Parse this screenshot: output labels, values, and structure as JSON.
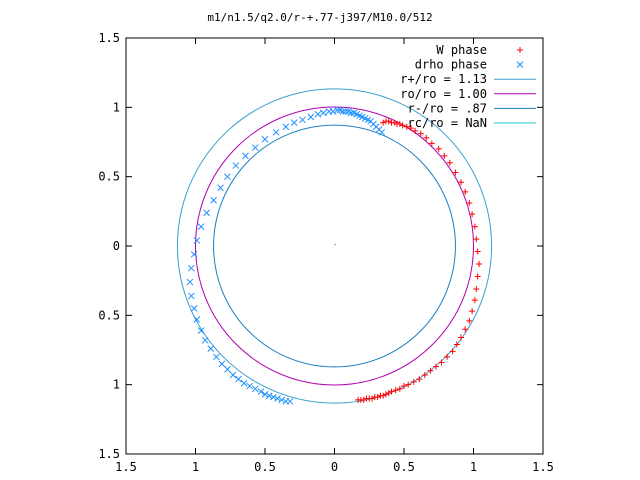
{
  "chart_data": {
    "type": "scatter",
    "title": "m1/n1.5/q2.0/r-+.77-j397/M10.0/512",
    "xlabel": "",
    "ylabel": "",
    "xlim": [
      -1.5,
      1.5
    ],
    "ylim": [
      -1.5,
      1.5
    ],
    "x_ticks": [
      -1.5,
      -1,
      -0.5,
      0,
      0.5,
      1,
      1.5
    ],
    "y_ticks": [
      -1.5,
      -1,
      -0.5,
      0,
      0.5,
      1,
      1.5
    ],
    "x_tick_labels": [
      "1.5",
      "1",
      "0.5",
      "0",
      "0.5",
      "1",
      "1.5"
    ],
    "y_tick_labels": [
      "1.5",
      "1",
      "0.5",
      "0",
      "0.5",
      "1",
      "1.5"
    ],
    "grid": false,
    "legend_position": "top-right",
    "series": [
      {
        "name": "W phase",
        "kind": "points",
        "marker": "plus",
        "color": "#ff0000",
        "x": [
          0.35,
          0.37,
          0.39,
          0.41,
          0.43,
          0.45,
          0.47,
          0.49,
          0.52,
          0.55,
          0.58,
          0.62,
          0.66,
          0.7,
          0.75,
          0.79,
          0.83,
          0.87,
          0.91,
          0.94,
          0.97,
          0.99,
          1.01,
          1.02,
          1.03,
          1.04,
          1.03,
          1.02,
          1.01,
          0.99,
          0.97,
          0.94,
          0.91,
          0.88,
          0.85,
          0.81,
          0.77,
          0.73,
          0.69,
          0.65,
          0.61,
          0.57,
          0.53,
          0.5,
          0.47,
          0.44,
          0.41,
          0.39,
          0.37,
          0.35,
          0.33,
          0.31,
          0.29,
          0.27,
          0.25,
          0.23,
          0.21,
          0.19,
          0.17
        ],
        "y": [
          0.89,
          0.9,
          0.9,
          0.89,
          0.89,
          0.88,
          0.88,
          0.87,
          0.86,
          0.85,
          0.83,
          0.81,
          0.78,
          0.74,
          0.7,
          0.65,
          0.6,
          0.53,
          0.46,
          0.39,
          0.31,
          0.23,
          0.14,
          0.05,
          -0.04,
          -0.13,
          -0.22,
          -0.31,
          -0.39,
          -0.47,
          -0.54,
          -0.6,
          -0.66,
          -0.71,
          -0.76,
          -0.8,
          -0.84,
          -0.87,
          -0.9,
          -0.93,
          -0.96,
          -0.98,
          -1.0,
          -1.01,
          -1.03,
          -1.04,
          -1.05,
          -1.06,
          -1.07,
          -1.08,
          -1.08,
          -1.09,
          -1.09,
          -1.1,
          -1.1,
          -1.1,
          -1.11,
          -1.11,
          -1.11
        ]
      },
      {
        "name": "drho phase",
        "kind": "points",
        "marker": "cross",
        "color": "#1e90ff",
        "x": [
          0.34,
          0.32,
          0.3,
          0.28,
          0.26,
          0.24,
          0.22,
          0.2,
          0.18,
          0.16,
          0.14,
          0.12,
          0.1,
          0.08,
          0.06,
          0.04,
          0.02,
          -0.01,
          -0.04,
          -0.08,
          -0.12,
          -0.17,
          -0.23,
          -0.29,
          -0.35,
          -0.42,
          -0.5,
          -0.57,
          -0.64,
          -0.71,
          -0.77,
          -0.82,
          -0.87,
          -0.92,
          -0.96,
          -0.99,
          -1.01,
          -1.03,
          -1.04,
          -1.03,
          -1.01,
          -0.99,
          -0.96,
          -0.93,
          -0.89,
          -0.85,
          -0.81,
          -0.77,
          -0.73,
          -0.69,
          -0.65,
          -0.61,
          -0.57,
          -0.53,
          -0.5,
          -0.47,
          -0.44,
          -0.41,
          -0.38,
          -0.35,
          -0.32
        ],
        "y": [
          0.82,
          0.84,
          0.86,
          0.88,
          0.9,
          0.91,
          0.92,
          0.93,
          0.94,
          0.95,
          0.96,
          0.96,
          0.97,
          0.97,
          0.97,
          0.98,
          0.98,
          0.97,
          0.97,
          0.96,
          0.95,
          0.93,
          0.91,
          0.89,
          0.86,
          0.82,
          0.77,
          0.71,
          0.65,
          0.58,
          0.5,
          0.42,
          0.33,
          0.24,
          0.14,
          0.04,
          -0.06,
          -0.16,
          -0.26,
          -0.36,
          -0.45,
          -0.53,
          -0.61,
          -0.68,
          -0.74,
          -0.8,
          -0.85,
          -0.89,
          -0.93,
          -0.96,
          -0.99,
          -1.01,
          -1.03,
          -1.05,
          -1.07,
          -1.08,
          -1.09,
          -1.1,
          -1.11,
          -1.12,
          -1.12
        ]
      },
      {
        "name": "r+/ro = 1.13",
        "kind": "circle",
        "radius": 1.13,
        "color": "#3a9fd0"
      },
      {
        "name": "ro/ro = 1.00",
        "kind": "circle",
        "radius": 1.0,
        "color": "#b000b0"
      },
      {
        "name": "r-/ro = .87",
        "kind": "circle",
        "radius": 0.87,
        "color": "#1a7fc0"
      },
      {
        "name": "rc/ro = NaN",
        "kind": "circle",
        "radius": null,
        "color": "#20c8c8"
      }
    ]
  }
}
